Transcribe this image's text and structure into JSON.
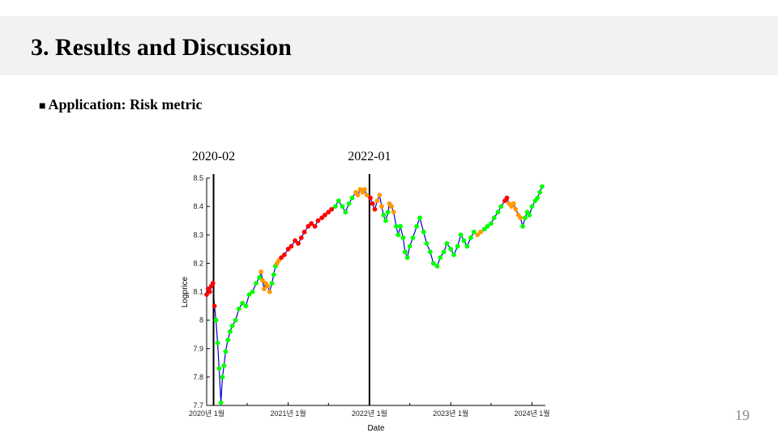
{
  "slide": {
    "title": "3. Results and Discussion",
    "section_heading": "Application: Risk metric",
    "bullet": "■",
    "page_number": "19"
  },
  "colors": {
    "title_bar_bg": "#f2f2f2",
    "low_risk": "#00ff00",
    "medium_risk": "#ff9900",
    "high_risk": "#ff0000",
    "price_line": "#0000cc"
  },
  "chart_data": {
    "type": "scatter",
    "xlabel": "Date",
    "ylabel": "Logprice",
    "xlim": [
      "2020-01-01",
      "2024-03-01"
    ],
    "ylim": [
      7.7,
      8.5
    ],
    "x_ticks": [
      {
        "date": "2020-01-01",
        "label": "2020년 1월"
      },
      {
        "date": "2021-01-01",
        "label": "2021년 1월"
      },
      {
        "date": "2022-01-01",
        "label": "2022년 1월"
      },
      {
        "date": "2023-01-01",
        "label": "2023년 1월"
      },
      {
        "date": "2024-01-01",
        "label": "2024년 1월"
      }
    ],
    "y_ticks": [
      "7.7",
      "7.8",
      "7.9",
      "8",
      "8.1",
      "8.2",
      "8.3",
      "8.4",
      "8.5"
    ],
    "vlines": [
      {
        "date": "2020-02-01",
        "label": "2020-02"
      },
      {
        "date": "2022-01-01",
        "label": "2022-01"
      }
    ],
    "series": [
      {
        "color": "#ff0000",
        "points": [
          [
            "2020-01-01",
            8.09
          ],
          [
            "2020-01-08",
            8.11
          ],
          [
            "2020-01-15",
            8.1
          ],
          [
            "2020-01-22",
            8.12
          ],
          [
            "2020-01-29",
            8.13
          ],
          [
            "2020-02-05",
            8.05
          ]
        ]
      },
      {
        "color": "#00ff00",
        "points": [
          [
            "2020-02-12",
            8.0
          ],
          [
            "2020-02-19",
            7.92
          ],
          [
            "2020-02-26",
            7.83
          ],
          [
            "2020-03-05",
            7.71
          ]
        ]
      },
      {
        "color": "#00ff00",
        "points": [
          [
            "2020-03-12",
            7.8
          ],
          [
            "2020-03-19",
            7.84
          ],
          [
            "2020-03-26",
            7.89
          ],
          [
            "2020-04-05",
            7.93
          ],
          [
            "2020-04-15",
            7.96
          ],
          [
            "2020-04-25",
            7.98
          ],
          [
            "2020-05-10",
            8.0
          ],
          [
            "2020-05-25",
            8.04
          ],
          [
            "2020-06-10",
            8.06
          ],
          [
            "2020-06-25",
            8.05
          ],
          [
            "2020-07-10",
            8.09
          ],
          [
            "2020-07-25",
            8.1
          ],
          [
            "2020-08-10",
            8.13
          ],
          [
            "2020-08-25",
            8.15
          ]
        ]
      },
      {
        "color": "#ff9900",
        "points": [
          [
            "2020-09-01",
            8.17
          ],
          [
            "2020-09-08",
            8.14
          ],
          [
            "2020-09-15",
            8.11
          ],
          [
            "2020-09-22",
            8.13
          ],
          [
            "2020-10-01",
            8.12
          ],
          [
            "2020-10-10",
            8.1
          ]
        ]
      },
      {
        "color": "#00ff00",
        "points": [
          [
            "2020-10-20",
            8.13
          ],
          [
            "2020-10-28",
            8.16
          ],
          [
            "2020-11-05",
            8.19
          ]
        ]
      },
      {
        "color": "#ff9900",
        "points": [
          [
            "2020-11-12",
            8.2
          ],
          [
            "2020-11-20",
            8.21
          ]
        ]
      },
      {
        "color": "#ff0000",
        "points": [
          [
            "2020-12-01",
            8.22
          ],
          [
            "2020-12-15",
            8.23
          ],
          [
            "2021-01-01",
            8.25
          ],
          [
            "2021-01-15",
            8.26
          ],
          [
            "2021-02-01",
            8.28
          ],
          [
            "2021-02-15",
            8.27
          ],
          [
            "2021-03-01",
            8.29
          ],
          [
            "2021-03-15",
            8.31
          ],
          [
            "2021-04-01",
            8.33
          ],
          [
            "2021-04-15",
            8.34
          ],
          [
            "2021-05-01",
            8.33
          ],
          [
            "2021-05-15",
            8.35
          ],
          [
            "2021-06-01",
            8.36
          ],
          [
            "2021-06-15",
            8.37
          ],
          [
            "2021-07-01",
            8.38
          ],
          [
            "2021-07-15",
            8.39
          ]
        ]
      },
      {
        "color": "#00ff00",
        "points": [
          [
            "2021-08-01",
            8.4
          ],
          [
            "2021-08-15",
            8.42
          ],
          [
            "2021-09-01",
            8.4
          ],
          [
            "2021-09-15",
            8.38
          ],
          [
            "2021-10-01",
            8.41
          ],
          [
            "2021-10-15",
            8.43
          ]
        ]
      },
      {
        "color": "#ff9900",
        "points": [
          [
            "2021-11-01",
            8.45
          ],
          [
            "2021-11-10",
            8.44
          ],
          [
            "2021-11-20",
            8.46
          ],
          [
            "2021-12-01",
            8.45
          ],
          [
            "2021-12-10",
            8.46
          ],
          [
            "2021-12-20",
            8.44
          ]
        ]
      },
      {
        "color": "#ff0000",
        "points": [
          [
            "2022-01-05",
            8.43
          ],
          [
            "2022-01-15",
            8.41
          ],
          [
            "2022-01-25",
            8.39
          ]
        ]
      },
      {
        "color": "#ff9900",
        "points": [
          [
            "2022-02-05",
            8.42
          ],
          [
            "2022-02-15",
            8.44
          ],
          [
            "2022-02-25",
            8.4
          ]
        ]
      },
      {
        "color": "#00ff00",
        "points": [
          [
            "2022-03-05",
            8.37
          ],
          [
            "2022-03-15",
            8.35
          ],
          [
            "2022-03-25",
            8.38
          ]
        ]
      },
      {
        "color": "#ff9900",
        "points": [
          [
            "2022-04-01",
            8.41
          ],
          [
            "2022-04-10",
            8.4
          ],
          [
            "2022-04-20",
            8.38
          ]
        ]
      },
      {
        "color": "#00ff00",
        "points": [
          [
            "2022-05-01",
            8.33
          ],
          [
            "2022-05-10",
            8.3
          ],
          [
            "2022-05-20",
            8.33
          ],
          [
            "2022-06-01",
            8.29
          ],
          [
            "2022-06-10",
            8.24
          ],
          [
            "2022-06-20",
            8.22
          ],
          [
            "2022-07-01",
            8.26
          ],
          [
            "2022-07-15",
            8.29
          ],
          [
            "2022-08-01",
            8.33
          ],
          [
            "2022-08-15",
            8.36
          ],
          [
            "2022-09-01",
            8.31
          ],
          [
            "2022-09-15",
            8.27
          ],
          [
            "2022-10-01",
            8.24
          ],
          [
            "2022-10-15",
            8.2
          ],
          [
            "2022-11-01",
            8.19
          ],
          [
            "2022-11-15",
            8.22
          ],
          [
            "2022-12-01",
            8.24
          ],
          [
            "2022-12-15",
            8.27
          ],
          [
            "2023-01-01",
            8.25
          ],
          [
            "2023-01-15",
            8.23
          ],
          [
            "2023-02-01",
            8.26
          ],
          [
            "2023-02-15",
            8.3
          ],
          [
            "2023-03-01",
            8.28
          ],
          [
            "2023-03-15",
            8.26
          ],
          [
            "2023-04-01",
            8.29
          ],
          [
            "2023-04-15",
            8.31
          ]
        ]
      },
      {
        "color": "#ff9900",
        "points": [
          [
            "2023-05-01",
            8.3
          ],
          [
            "2023-05-15",
            8.31
          ]
        ]
      },
      {
        "color": "#00ff00",
        "points": [
          [
            "2023-06-01",
            8.32
          ],
          [
            "2023-06-15",
            8.33
          ],
          [
            "2023-07-01",
            8.34
          ],
          [
            "2023-07-15",
            8.36
          ],
          [
            "2023-08-01",
            8.38
          ],
          [
            "2023-08-15",
            8.4
          ]
        ]
      },
      {
        "color": "#ff0000",
        "points": [
          [
            "2023-09-01",
            8.42
          ],
          [
            "2023-09-10",
            8.43
          ]
        ]
      },
      {
        "color": "#ff9900",
        "points": [
          [
            "2023-09-20",
            8.41
          ],
          [
            "2023-10-01",
            8.4
          ],
          [
            "2023-10-10",
            8.41
          ],
          [
            "2023-10-20",
            8.39
          ],
          [
            "2023-11-01",
            8.37
          ],
          [
            "2023-11-10",
            8.36
          ]
        ]
      },
      {
        "color": "#00ff00",
        "points": [
          [
            "2023-11-20",
            8.33
          ],
          [
            "2023-12-01",
            8.36
          ],
          [
            "2023-12-10",
            8.38
          ],
          [
            "2023-12-20",
            8.37
          ],
          [
            "2024-01-01",
            8.4
          ],
          [
            "2024-01-15",
            8.42
          ],
          [
            "2024-01-25",
            8.43
          ],
          [
            "2024-02-05",
            8.45
          ],
          [
            "2024-02-15",
            8.47
          ]
        ]
      }
    ]
  }
}
